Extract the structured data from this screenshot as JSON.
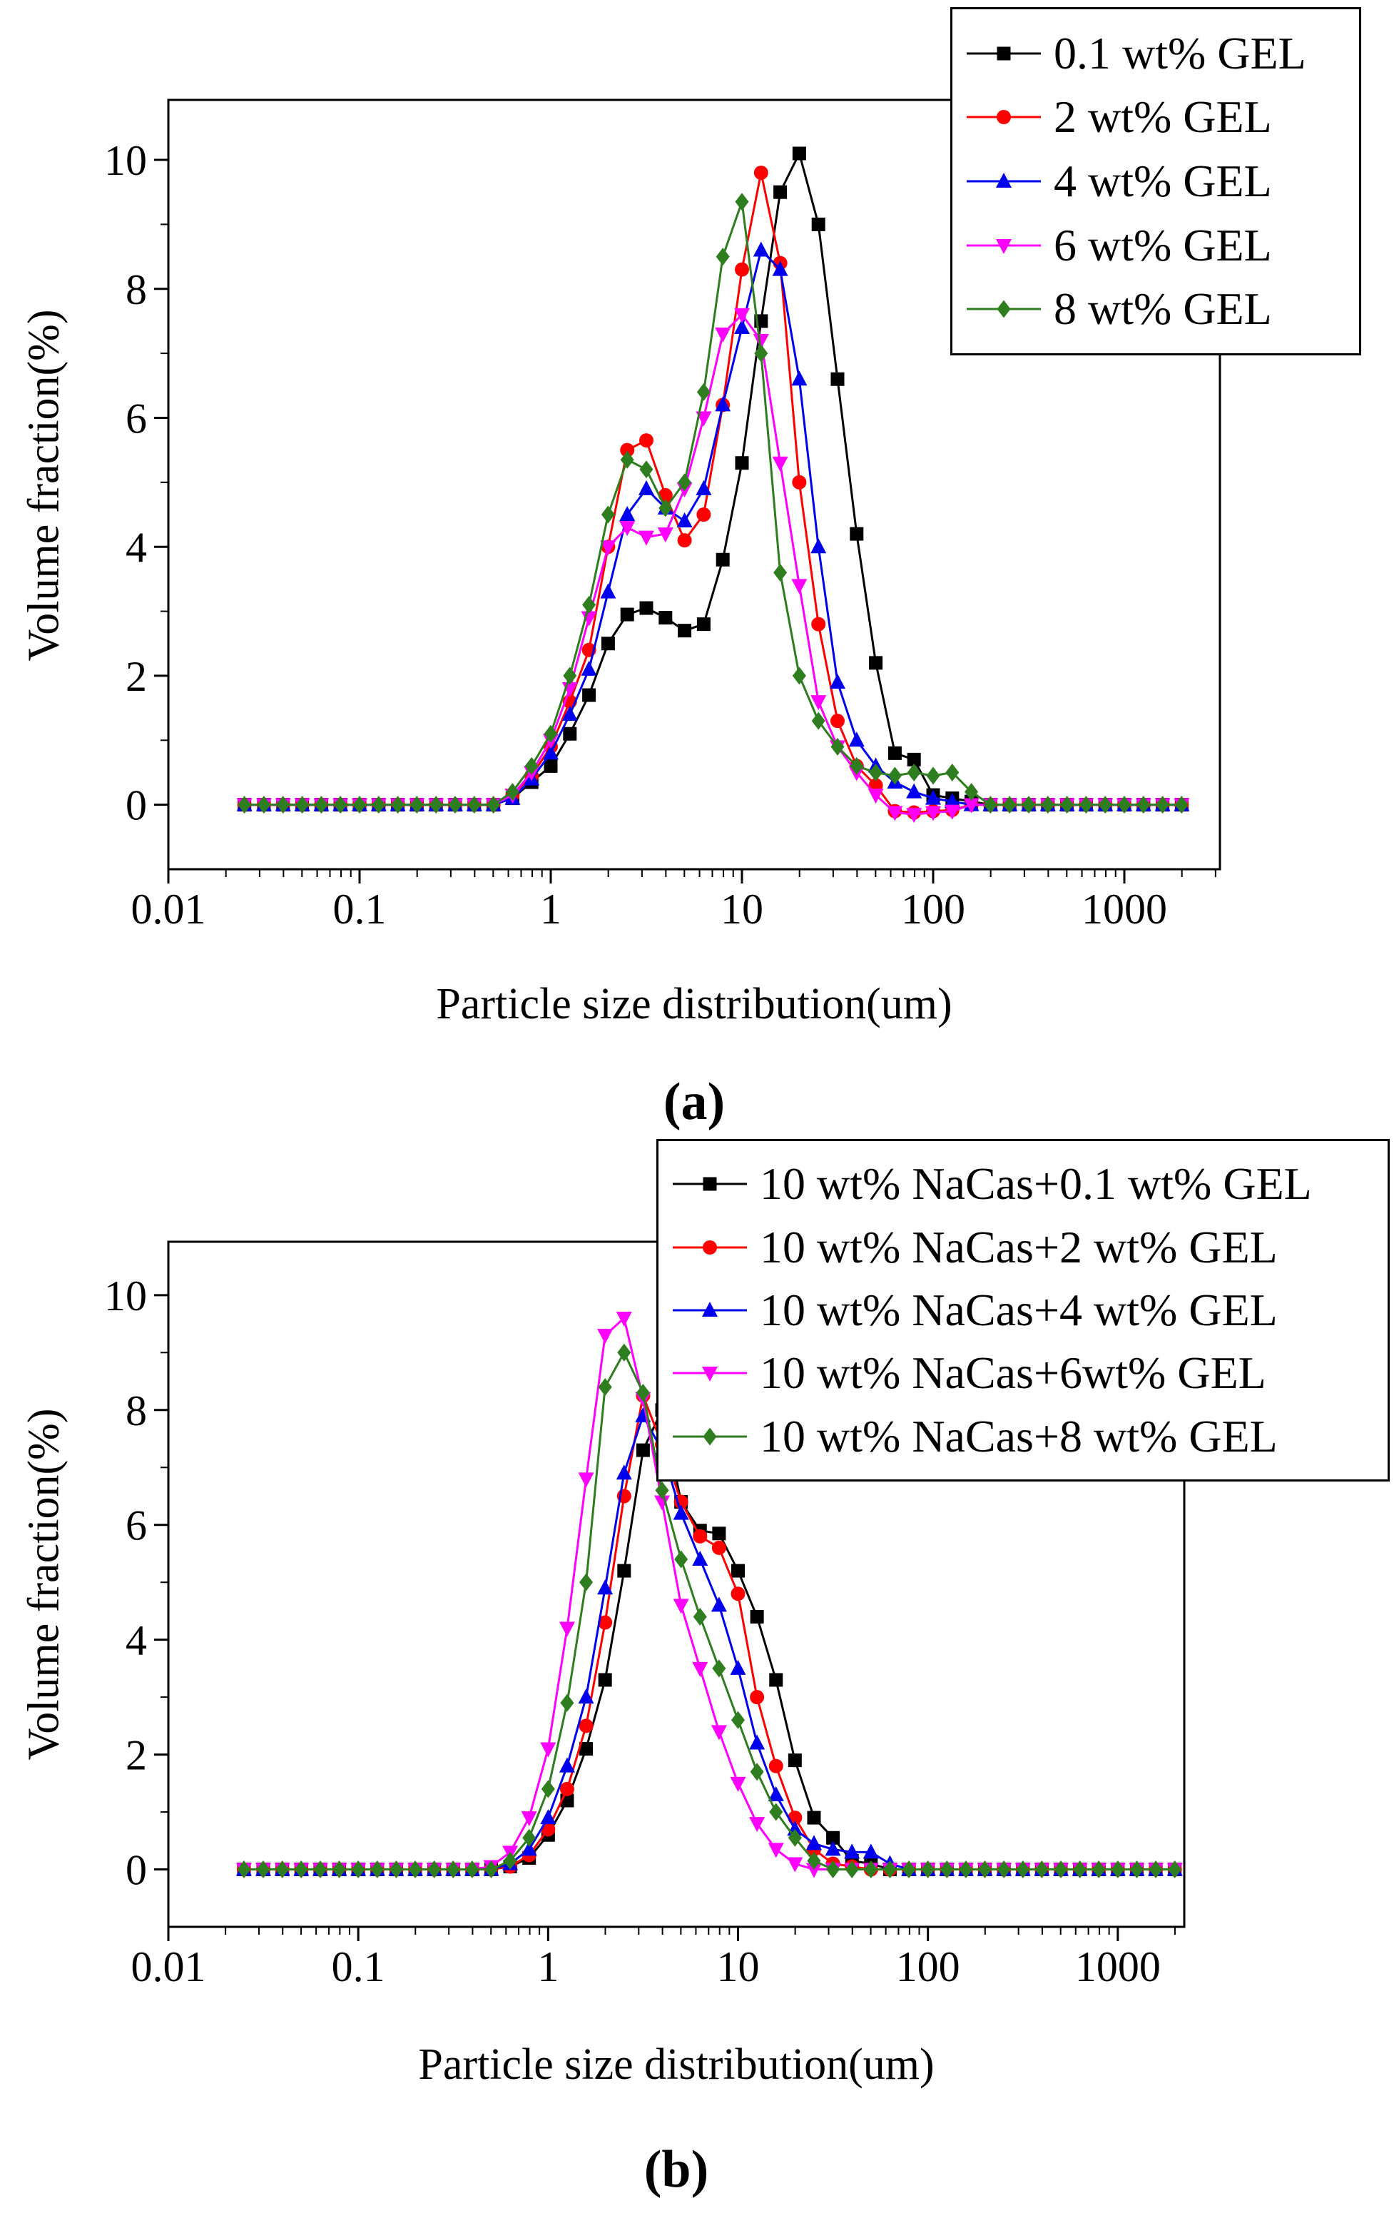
{
  "figure": {
    "background": "#ffffff"
  },
  "chart_data": [
    {
      "id": "a",
      "caption": "(a)",
      "type": "line",
      "x_scale": "log",
      "xlabel": "Particle size distribution(um)",
      "ylabel": "Volume fraction(%)",
      "xlim_log10": [
        -2,
        3.5
      ],
      "ylim": [
        -1.0,
        10.93
      ],
      "x_tick_values": [
        0.01,
        0.1,
        1,
        10,
        100,
        1000
      ],
      "x_tick_labels": [
        "0.01",
        "0.1",
        "1",
        "10",
        "100",
        "1000"
      ],
      "y_tick_values": [
        0,
        2,
        4,
        6,
        8,
        10
      ],
      "y_tick_labels": [
        "0",
        "2",
        "4",
        "6",
        "8",
        "10"
      ],
      "grid": false,
      "legend_position": "top-right-outside",
      "x": [
        0.025,
        0.0316,
        0.0398,
        0.0501,
        0.0631,
        0.0794,
        0.1,
        0.1259,
        0.1585,
        0.1995,
        0.2512,
        0.3162,
        0.3981,
        0.5012,
        0.631,
        0.7943,
        1.0,
        1.259,
        1.585,
        1.995,
        2.512,
        3.162,
        3.981,
        5.012,
        6.31,
        7.943,
        10.0,
        12.59,
        15.85,
        19.95,
        25.12,
        31.62,
        39.81,
        50.12,
        63.1,
        79.43,
        100.0,
        125.9,
        158.5,
        199.5,
        251.2,
        316.2,
        398.1,
        501.2,
        631.0,
        794.3,
        1000.0,
        1259.0,
        1585.0,
        1995.0
      ],
      "series": [
        {
          "name": "0.1 wt% GEL",
          "color": "#000000",
          "marker": "square",
          "values": [
            0,
            0,
            0,
            0,
            0,
            0,
            0,
            0,
            0,
            0,
            0,
            0,
            0,
            0,
            0.1,
            0.35,
            0.6,
            1.1,
            1.7,
            2.5,
            2.95,
            3.05,
            2.9,
            2.7,
            2.8,
            3.8,
            5.3,
            7.5,
            9.5,
            10.1,
            9.0,
            6.6,
            4.2,
            2.2,
            0.8,
            0.7,
            0.15,
            0.1,
            0.05,
            0,
            0,
            0,
            0,
            0,
            0,
            0,
            0,
            0,
            0,
            0
          ]
        },
        {
          "name": "2 wt% GEL",
          "color": "#ff0000",
          "marker": "circle",
          "values": [
            0,
            0,
            0,
            0,
            0,
            0,
            0,
            0,
            0,
            0,
            0,
            0,
            0,
            0,
            0.15,
            0.45,
            0.9,
            1.6,
            2.4,
            4.0,
            5.5,
            5.65,
            4.8,
            4.1,
            4.5,
            6.2,
            8.3,
            9.8,
            8.4,
            5.0,
            2.8,
            1.3,
            0.6,
            0.3,
            -0.1,
            -0.12,
            -0.1,
            -0.08,
            0,
            0,
            0,
            0,
            0,
            0,
            0,
            0,
            0,
            0,
            0,
            0
          ]
        },
        {
          "name": "4 wt% GEL",
          "color": "#0000ee",
          "marker": "triangle-up",
          "values": [
            0,
            0,
            0,
            0,
            0,
            0,
            0,
            0,
            0,
            0,
            0,
            0,
            0,
            0,
            0.1,
            0.4,
            0.8,
            1.4,
            2.1,
            3.3,
            4.5,
            4.9,
            4.6,
            4.4,
            4.9,
            6.2,
            7.4,
            8.6,
            8.3,
            6.6,
            4.0,
            1.9,
            1.0,
            0.6,
            0.35,
            0.2,
            0.1,
            0.05,
            0,
            0,
            0,
            0,
            0,
            0,
            0,
            0,
            0,
            0,
            0,
            0
          ]
        },
        {
          "name": "6 wt% GEL",
          "color": "#ff00ff",
          "marker": "triangle-down",
          "values": [
            0,
            0,
            0,
            0,
            0,
            0,
            0,
            0,
            0,
            0,
            0,
            0,
            0,
            0,
            0.15,
            0.5,
            1.0,
            1.8,
            2.9,
            4.0,
            4.3,
            4.15,
            4.2,
            4.9,
            6.0,
            7.3,
            7.6,
            7.2,
            5.3,
            3.4,
            1.6,
            0.9,
            0.5,
            0.15,
            -0.12,
            -0.15,
            -0.12,
            -0.1,
            0,
            0,
            0,
            0,
            0,
            0,
            0,
            0,
            0,
            0,
            0,
            0
          ]
        },
        {
          "name": "8 wt% GEL",
          "color": "#2e7d1e",
          "marker": "diamond",
          "values": [
            0,
            0,
            0,
            0,
            0,
            0,
            0,
            0,
            0,
            0,
            0,
            0,
            0,
            0,
            0.2,
            0.6,
            1.1,
            2.0,
            3.1,
            4.5,
            5.35,
            5.2,
            4.6,
            5.0,
            6.4,
            8.5,
            9.35,
            7.0,
            3.6,
            2.0,
            1.3,
            0.9,
            0.6,
            0.5,
            0.45,
            0.5,
            0.45,
            0.5,
            0.2,
            0,
            0,
            0,
            0,
            0,
            0,
            0,
            0,
            0,
            0,
            0
          ]
        }
      ]
    },
    {
      "id": "b",
      "caption": "(b)",
      "type": "line",
      "x_scale": "log",
      "xlabel": "Particle size distribution(um)",
      "ylabel": "Volume fraction(%)",
      "xlim_log10": [
        -2,
        3.35
      ],
      "ylim": [
        -1.0,
        10.93
      ],
      "x_tick_values": [
        0.01,
        0.1,
        1,
        10,
        100,
        1000
      ],
      "x_tick_labels": [
        "0.01",
        "0.1",
        "1",
        "10",
        "100",
        "1000"
      ],
      "y_tick_values": [
        0,
        2,
        4,
        6,
        8,
        10
      ],
      "y_tick_labels": [
        "0",
        "2",
        "4",
        "6",
        "8",
        "10"
      ],
      "grid": false,
      "legend_position": "top-right-inside",
      "x": [
        0.025,
        0.0316,
        0.0398,
        0.0501,
        0.0631,
        0.0794,
        0.1,
        0.1259,
        0.1585,
        0.1995,
        0.2512,
        0.3162,
        0.3981,
        0.5012,
        0.631,
        0.7943,
        1.0,
        1.259,
        1.585,
        1.995,
        2.512,
        3.162,
        3.981,
        5.012,
        6.31,
        7.943,
        10.0,
        12.59,
        15.85,
        19.95,
        25.12,
        31.62,
        39.81,
        50.12,
        63.1,
        79.43,
        100.0,
        125.9,
        158.5,
        199.5,
        251.2,
        316.2,
        398.1,
        501.2,
        631.0,
        794.3,
        1000.0,
        1259.0,
        1585.0,
        1995.0
      ],
      "series": [
        {
          "name": "10 wt% NaCas+0.1 wt% GEL",
          "color": "#000000",
          "marker": "square",
          "values": [
            0,
            0,
            0,
            0,
            0,
            0,
            0,
            0,
            0,
            0,
            0,
            0,
            0,
            0,
            0.05,
            0.2,
            0.6,
            1.2,
            2.1,
            3.3,
            5.2,
            7.3,
            8.0,
            6.4,
            5.9,
            5.85,
            5.2,
            4.4,
            3.3,
            1.9,
            0.9,
            0.55,
            0.15,
            0.1,
            0,
            0,
            0,
            0,
            0,
            0,
            0,
            0,
            0,
            0,
            0,
            0,
            0,
            0,
            0,
            0
          ]
        },
        {
          "name": "10 wt% NaCas+2 wt% GEL",
          "color": "#ff0000",
          "marker": "circle",
          "values": [
            0,
            0,
            0,
            0,
            0,
            0,
            0,
            0,
            0,
            0,
            0,
            0,
            0,
            0,
            0.05,
            0.25,
            0.7,
            1.4,
            2.5,
            4.3,
            6.5,
            8.25,
            7.4,
            6.4,
            5.8,
            5.6,
            4.8,
            3.0,
            1.8,
            0.9,
            0.35,
            0.1,
            0.05,
            0,
            0,
            0,
            0,
            0,
            0,
            0,
            0,
            0,
            0,
            0,
            0,
            0,
            0,
            0,
            0,
            0
          ]
        },
        {
          "name": "10 wt% NaCas+4 wt% GEL",
          "color": "#0000ee",
          "marker": "triangle-up",
          "values": [
            0,
            0,
            0,
            0,
            0,
            0,
            0,
            0,
            0,
            0,
            0,
            0,
            0,
            0,
            0.1,
            0.35,
            0.9,
            1.8,
            3.0,
            4.9,
            6.9,
            7.9,
            7.3,
            6.2,
            5.4,
            4.6,
            3.5,
            2.2,
            1.3,
            0.7,
            0.45,
            0.35,
            0.3,
            0.3,
            0.1,
            0,
            0,
            0,
            0,
            0,
            0,
            0,
            0,
            0,
            0,
            0,
            0,
            0,
            0,
            0
          ]
        },
        {
          "name": "10 wt% NaCas+6wt% GEL",
          "color": "#ff00ff",
          "marker": "triangle-down",
          "values": [
            0,
            0,
            0,
            0,
            0,
            0,
            0,
            0,
            0,
            0,
            0,
            0,
            0,
            0.05,
            0.3,
            0.9,
            2.1,
            4.2,
            6.8,
            9.3,
            9.6,
            8.2,
            6.4,
            4.6,
            3.5,
            2.4,
            1.5,
            0.8,
            0.35,
            0.1,
            0,
            0,
            0,
            0,
            0,
            0,
            0,
            0,
            0,
            0,
            0,
            0,
            0,
            0,
            0,
            0,
            0,
            0,
            0,
            0
          ]
        },
        {
          "name": "10 wt% NaCas+8 wt% GEL",
          "color": "#2e7d1e",
          "marker": "diamond",
          "values": [
            0,
            0,
            0,
            0,
            0,
            0,
            0,
            0,
            0,
            0,
            0,
            0,
            0,
            0,
            0.15,
            0.55,
            1.4,
            2.9,
            5.0,
            8.4,
            9.0,
            8.3,
            6.6,
            5.4,
            4.4,
            3.5,
            2.6,
            1.7,
            1.0,
            0.55,
            0.15,
            0,
            0,
            0,
            0,
            0,
            0,
            0,
            0,
            0,
            0,
            0,
            0,
            0,
            0,
            0,
            0,
            0,
            0,
            0
          ]
        }
      ]
    }
  ]
}
